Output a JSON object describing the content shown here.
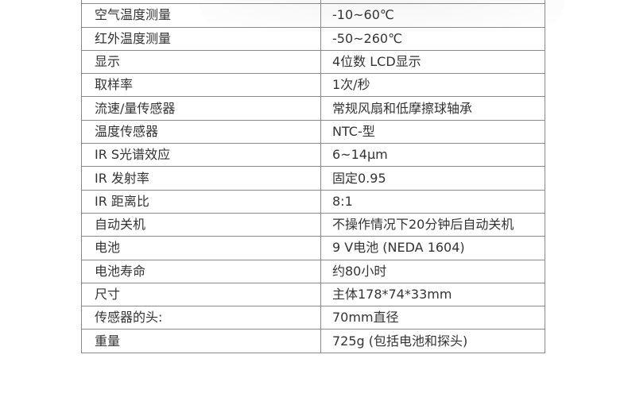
{
  "specs": [
    {
      "label": "",
      "value": ""
    },
    {
      "label": "空气温度测量",
      "value": "-10~60℃"
    },
    {
      "label": "红外温度测量",
      "value": "-50~260℃"
    },
    {
      "label": "显示",
      "value": "4位数 LCD显示"
    },
    {
      "label": "取样率",
      "value": "1次/秒"
    },
    {
      "label": "流速/量传感器",
      "value": "常规风扇和低摩擦球轴承"
    },
    {
      "label": "温度传感器",
      "value": "NTC-型"
    },
    {
      "label": "IR S光谱效应",
      "value": "6~14μm"
    },
    {
      "label": "IR 发射率",
      "value": "固定0.95"
    },
    {
      "label": "IR 距离比",
      "value": "8:1"
    },
    {
      "label": "自动关机",
      "value": "不操作情况下20分钟后自动关机"
    },
    {
      "label": "电池",
      "value": "9 V电池 (NEDA 1604)"
    },
    {
      "label": "电池寿命",
      "value": "约80小时"
    },
    {
      "label": "尺寸",
      "value": "主体178*74*33mm"
    },
    {
      "label": "传感器的头:",
      "value": "70mm直径"
    },
    {
      "label": "重量",
      "value": "725g (包括电池和探头)"
    }
  ]
}
